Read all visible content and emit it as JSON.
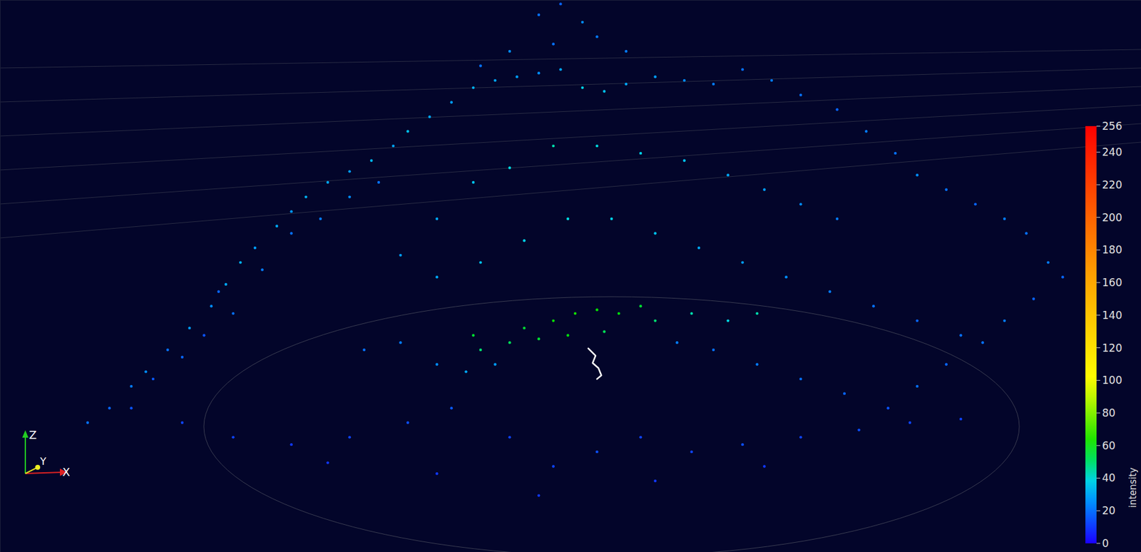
{
  "chart_data": {
    "type": "scatter",
    "tick_labels": false,
    "xlim": [
      0,
      1568
    ],
    "ylim": [
      758,
      0
    ],
    "x": [
      120,
      150,
      180,
      200,
      230,
      260,
      290,
      310,
      330,
      350,
      380,
      400,
      420,
      450,
      480,
      510,
      540,
      560,
      590,
      620,
      650,
      680,
      710,
      740,
      770,
      800,
      830,
      860,
      900,
      940,
      980,
      1020,
      1060,
      1100,
      1150,
      1190,
      1230,
      1260,
      1300,
      1340,
      1380,
      1410,
      1440,
      1460,
      740,
      770,
      800,
      820,
      760,
      700,
      860,
      660,
      300,
      320,
      280,
      250,
      210,
      360,
      400,
      440,
      480,
      520,
      600,
      650,
      700,
      760,
      820,
      880,
      940,
      1000,
      1050,
      1100,
      1150,
      550,
      600,
      660,
      720,
      780,
      840,
      900,
      960,
      1020,
      1080,
      1140,
      1200,
      1260,
      1320,
      650,
      660,
      700,
      720,
      760,
      790,
      820,
      850,
      880,
      900,
      740,
      780,
      830,
      950,
      1000,
      1040,
      500,
      550,
      600,
      640,
      680,
      930,
      980,
      1040,
      1100,
      1160,
      1220,
      1260,
      1300,
      1350,
      1380,
      1420,
      180,
      250,
      320,
      400,
      480,
      560,
      620,
      700,
      760,
      820,
      880,
      950,
      1020,
      1100,
      1180,
      1250,
      1320,
      450,
      600,
      740,
      900,
      1050
    ],
    "y": [
      580,
      560,
      530,
      510,
      480,
      450,
      420,
      390,
      360,
      340,
      310,
      290,
      270,
      250,
      235,
      220,
      200,
      180,
      160,
      140,
      120,
      110,
      105,
      100,
      95,
      120,
      125,
      115,
      105,
      110,
      115,
      95,
      110,
      130,
      150,
      180,
      210,
      240,
      260,
      280,
      300,
      320,
      360,
      380,
      20,
      5,
      30,
      50,
      60,
      70,
      70,
      90,
      400,
      430,
      460,
      490,
      520,
      370,
      320,
      300,
      270,
      250,
      300,
      250,
      230,
      200,
      200,
      210,
      220,
      240,
      260,
      280,
      300,
      350,
      380,
      360,
      330,
      300,
      300,
      320,
      340,
      360,
      380,
      400,
      420,
      440,
      460,
      460,
      480,
      470,
      450,
      440,
      430,
      425,
      430,
      420,
      440,
      465,
      460,
      455,
      430,
      440,
      430,
      480,
      470,
      500,
      510,
      500,
      470,
      480,
      500,
      520,
      540,
      560,
      530,
      500,
      470,
      440,
      410,
      560,
      580,
      600,
      610,
      600,
      580,
      560,
      600,
      640,
      620,
      600,
      620,
      610,
      600,
      590,
      580,
      575,
      635,
      650,
      680,
      660,
      640
    ],
    "intensity": [
      20,
      18,
      22,
      25,
      20,
      28,
      25,
      30,
      32,
      28,
      30,
      27,
      32,
      30,
      28,
      33,
      30,
      35,
      30,
      28,
      32,
      30,
      28,
      25,
      30,
      38,
      35,
      30,
      28,
      25,
      22,
      20,
      22,
      20,
      18,
      22,
      20,
      25,
      20,
      18,
      22,
      20,
      22,
      18,
      20,
      18,
      25,
      22,
      20,
      25,
      22,
      20,
      18,
      20,
      15,
      18,
      16,
      22,
      20,
      22,
      25,
      20,
      30,
      35,
      40,
      45,
      40,
      38,
      35,
      30,
      28,
      25,
      22,
      28,
      30,
      35,
      38,
      40,
      38,
      35,
      30,
      28,
      25,
      22,
      20,
      18,
      20,
      55,
      50,
      52,
      55,
      60,
      62,
      60,
      58,
      55,
      50,
      55,
      58,
      52,
      45,
      40,
      45,
      20,
      22,
      25,
      30,
      28,
      22,
      20,
      22,
      20,
      18,
      15,
      20,
      18,
      20,
      22,
      18,
      15,
      12,
      12,
      10,
      12,
      14,
      16,
      12,
      12,
      14,
      12,
      12,
      14,
      12,
      14,
      12,
      12,
      10,
      10,
      10,
      10,
      10
    ],
    "path": {
      "x": [
        808,
        818,
        814,
        822,
        826,
        820
      ],
      "y": [
        478,
        488,
        498,
        505,
        515,
        520
      ],
      "color": "#ffffff"
    },
    "colorbar": {
      "label": "intensity",
      "range": [
        0,
        256
      ],
      "ticks": [
        0,
        20,
        40,
        60,
        80,
        100,
        120,
        140,
        160,
        180,
        200,
        220,
        240,
        256
      ]
    },
    "axis_indicator": [
      "Z",
      "Y",
      "X"
    ]
  }
}
